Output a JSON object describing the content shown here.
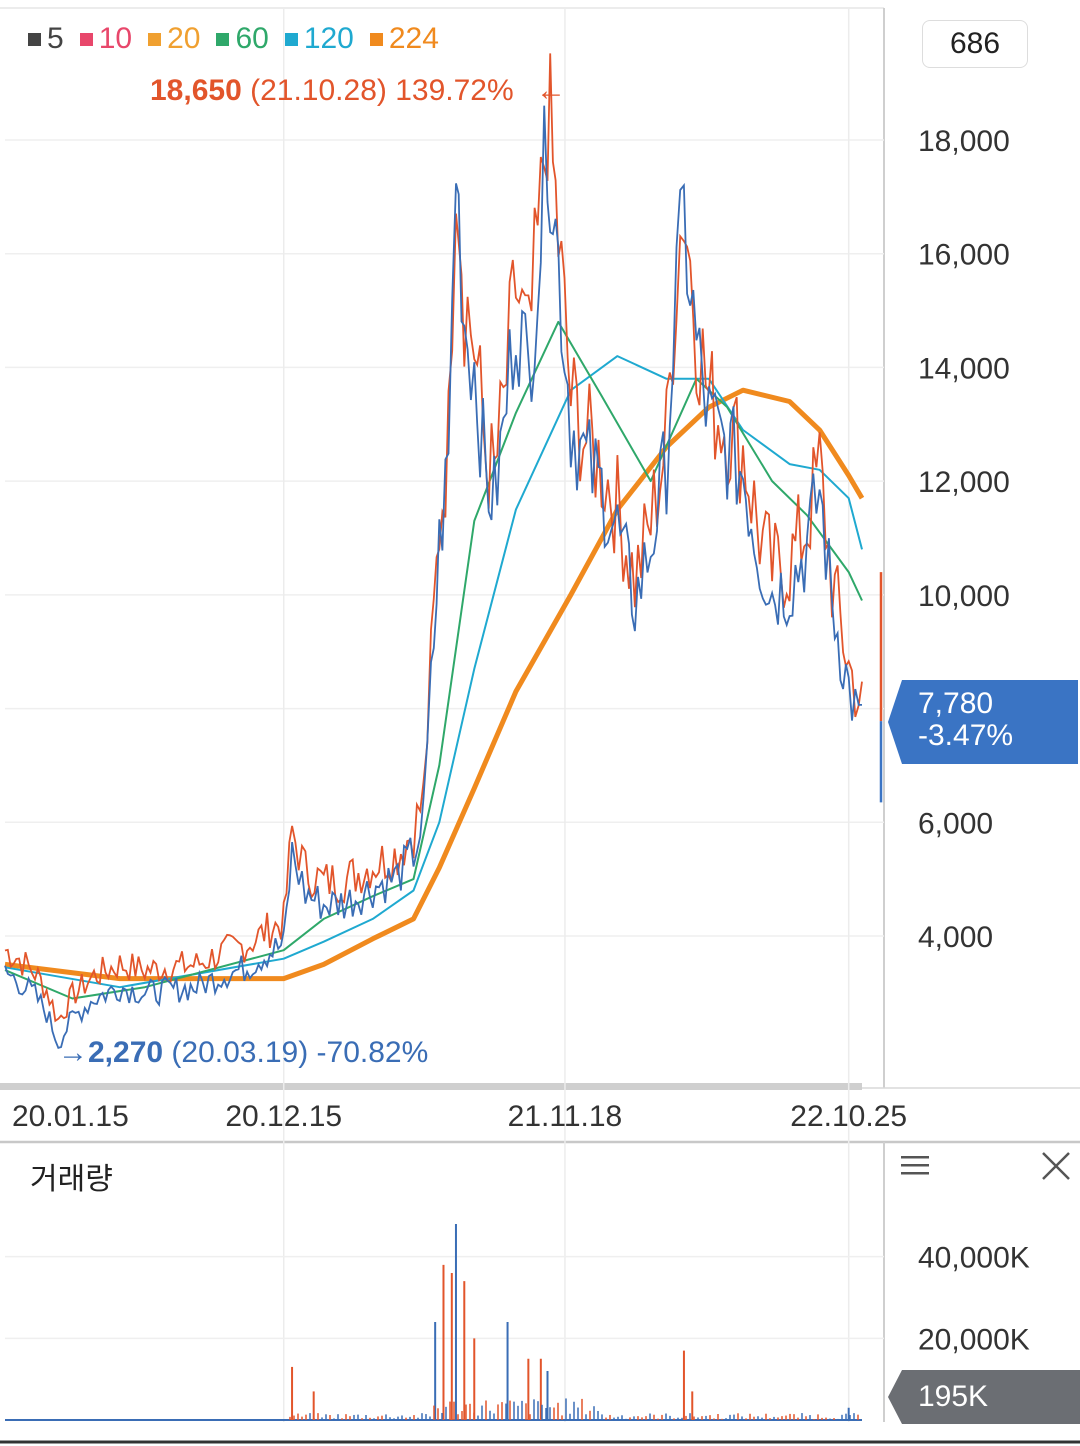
{
  "legend": [
    {
      "label": "5",
      "color": "#444444"
    },
    {
      "label": "10",
      "color": "#e8476b"
    },
    {
      "label": "20",
      "color": "#f0a030"
    },
    {
      "label": "60",
      "color": "#2fa86a"
    },
    {
      "label": "120",
      "color": "#1fa9d0"
    },
    {
      "label": "224",
      "color": "#f08a1e"
    }
  ],
  "top_right_value": "686",
  "max_annotation": {
    "price": "18,650",
    "date": "(21.10.28)",
    "change": "139.72%",
    "arrow": "←"
  },
  "min_annotation": {
    "arrow": "→",
    "price": "2,270",
    "date": "(20.03.19)",
    "change": "-70.82%"
  },
  "current_price": {
    "price": "7,780",
    "change": "-3.47%"
  },
  "volume": {
    "title": "거래량",
    "current": "195K",
    "menu_icon": "hamburger-icon",
    "close_icon": "close-icon"
  },
  "colors": {
    "accent": "#3a74c4",
    "up": "#e2552b",
    "down": "#3a6db5",
    "vol_tag": "#6b6e73"
  },
  "chart_data": [
    {
      "type": "line",
      "title": "",
      "xlabel": "",
      "ylabel": "",
      "x_ticks": [
        "20.01.15",
        "20.12.15",
        "21.11.18",
        "22.10.25"
      ],
      "y_ticks": [
        4000,
        6000,
        8000,
        10000,
        12000,
        14000,
        16000,
        18000
      ],
      "y_tick_labels": [
        "4,000",
        "6,000",
        "",
        "10,000",
        "12,000",
        "14,000",
        "16,000",
        "18,000"
      ],
      "ylim": [
        1300,
        19700
      ],
      "grid": true,
      "price_close": [
        [
          "20.01.15",
          3500
        ],
        [
          "20.02.01",
          3350
        ],
        [
          "20.02.20",
          3100
        ],
        [
          "20.03.05",
          2800
        ],
        [
          "20.03.19",
          2270
        ],
        [
          "20.04.05",
          2700
        ],
        [
          "20.05.01",
          3050
        ],
        [
          "20.06.01",
          3250
        ],
        [
          "20.07.01",
          3150
        ],
        [
          "20.08.01",
          3200
        ],
        [
          "20.09.01",
          3250
        ],
        [
          "20.10.01",
          3450
        ],
        [
          "20.11.01",
          3600
        ],
        [
          "20.11.25",
          3850
        ],
        [
          "20.12.15",
          4000
        ],
        [
          "20.12.25",
          5600
        ],
        [
          "21.01.10",
          4900
        ],
        [
          "21.02.01",
          4700
        ],
        [
          "21.03.01",
          4750
        ],
        [
          "21.04.01",
          5000
        ],
        [
          "21.05.01",
          5200
        ],
        [
          "21.05.20",
          5600
        ],
        [
          "21.06.01",
          6200
        ],
        [
          "21.06.10",
          8500
        ],
        [
          "21.06.20",
          11000
        ],
        [
          "21.07.01",
          12500
        ],
        [
          "21.07.10",
          17800
        ],
        [
          "21.07.20",
          15000
        ],
        [
          "21.08.01",
          14200
        ],
        [
          "21.08.15",
          12200
        ],
        [
          "21.08.25",
          11800
        ],
        [
          "21.09.05",
          13000
        ],
        [
          "21.09.20",
          15200
        ],
        [
          "21.10.05",
          14000
        ],
        [
          "21.10.20",
          16500
        ],
        [
          "21.10.28",
          18400
        ],
        [
          "21.11.10",
          16000
        ],
        [
          "21.11.25",
          13200
        ],
        [
          "21.12.10",
          12600
        ],
        [
          "22.01.01",
          12000
        ],
        [
          "22.01.20",
          11300
        ],
        [
          "22.02.10",
          10000
        ],
        [
          "22.03.01",
          11000
        ],
        [
          "22.03.20",
          12500
        ],
        [
          "22.04.01",
          15500
        ],
        [
          "22.04.10",
          16700
        ],
        [
          "22.04.25",
          14500
        ],
        [
          "22.05.10",
          13200
        ],
        [
          "22.06.01",
          12700
        ],
        [
          "22.06.20",
          12300
        ],
        [
          "22.07.10",
          10800
        ],
        [
          "22.07.25",
          10200
        ],
        [
          "22.08.15",
          10300
        ],
        [
          "22.09.05",
          11000
        ],
        [
          "22.09.20",
          12000
        ],
        [
          "22.10.05",
          10000
        ],
        [
          "22.10.25",
          8500
        ],
        [
          "22.11.10",
          7780
        ]
      ],
      "series": [
        {
          "name": "224",
          "color": "#f08a1e",
          "values": [
            [
              "20.01.15",
              3500
            ],
            [
              "20.06.01",
              3250
            ],
            [
              "20.12.15",
              3250
            ],
            [
              "21.02.01",
              3500
            ],
            [
              "21.04.01",
              3950
            ],
            [
              "21.05.20",
              4300
            ],
            [
              "21.06.20",
              5200
            ],
            [
              "21.08.01",
              6600
            ],
            [
              "21.09.20",
              8300
            ],
            [
              "21.11.25",
              10000
            ],
            [
              "22.01.20",
              11500
            ],
            [
              "22.03.20",
              12600
            ],
            [
              "22.05.10",
              13300
            ],
            [
              "22.06.20",
              13600
            ],
            [
              "22.08.15",
              13400
            ],
            [
              "22.09.20",
              12900
            ],
            [
              "22.10.25",
              12100
            ],
            [
              "22.11.10",
              11700
            ]
          ]
        },
        {
          "name": "120",
          "color": "#1fa9d0",
          "values": [
            [
              "20.01.15",
              3450
            ],
            [
              "20.06.01",
              3100
            ],
            [
              "20.12.15",
              3600
            ],
            [
              "21.02.01",
              3900
            ],
            [
              "21.04.01",
              4300
            ],
            [
              "21.05.20",
              4800
            ],
            [
              "21.06.20",
              6000
            ],
            [
              "21.08.01",
              8700
            ],
            [
              "21.09.20",
              11500
            ],
            [
              "21.11.25",
              13600
            ],
            [
              "22.01.20",
              14200
            ],
            [
              "22.03.20",
              13800
            ],
            [
              "22.05.10",
              13800
            ],
            [
              "22.06.20",
              12900
            ],
            [
              "22.08.15",
              12300
            ],
            [
              "22.09.20",
              12200
            ],
            [
              "22.10.25",
              11700
            ],
            [
              "22.11.10",
              10800
            ]
          ]
        },
        {
          "name": "60",
          "color": "#2fa86a",
          "values": [
            [
              "20.01.15",
              3400
            ],
            [
              "20.04.05",
              2900
            ],
            [
              "20.07.01",
              3100
            ],
            [
              "20.12.15",
              3750
            ],
            [
              "21.02.01",
              4300
            ],
            [
              "21.04.01",
              4700
            ],
            [
              "21.05.20",
              5000
            ],
            [
              "21.06.20",
              7000
            ],
            [
              "21.08.01",
              11300
            ],
            [
              "21.09.20",
              13200
            ],
            [
              "21.11.10",
              14800
            ],
            [
              "22.01.01",
              13500
            ],
            [
              "22.03.01",
              12000
            ],
            [
              "22.04.25",
              13800
            ],
            [
              "22.06.01",
              13300
            ],
            [
              "22.07.25",
              12000
            ],
            [
              "22.09.05",
              11400
            ],
            [
              "22.10.25",
              10400
            ],
            [
              "22.11.10",
              9900
            ]
          ]
        }
      ]
    },
    {
      "type": "bar",
      "title": "거래량",
      "y_ticks": [
        20000,
        40000
      ],
      "y_tick_labels": [
        "20,000K",
        "40,000K"
      ],
      "ylim": [
        0,
        48000
      ],
      "unit": "K",
      "current": 195,
      "spikes": [
        [
          "20.12.25",
          13000
        ],
        [
          "21.01.20",
          7000
        ],
        [
          "21.06.15",
          24000
        ],
        [
          "21.06.25",
          38000
        ],
        [
          "21.07.05",
          36000
        ],
        [
          "21.07.10",
          48000
        ],
        [
          "21.07.20",
          34000
        ],
        [
          "21.08.01",
          20000
        ],
        [
          "21.09.10",
          24000
        ],
        [
          "21.10.05",
          15000
        ],
        [
          "21.10.20",
          15000
        ],
        [
          "21.10.28",
          12000
        ],
        [
          "22.04.10",
          17000
        ],
        [
          "22.04.20",
          7000
        ],
        [
          "22.10.25",
          3000
        ]
      ]
    }
  ]
}
